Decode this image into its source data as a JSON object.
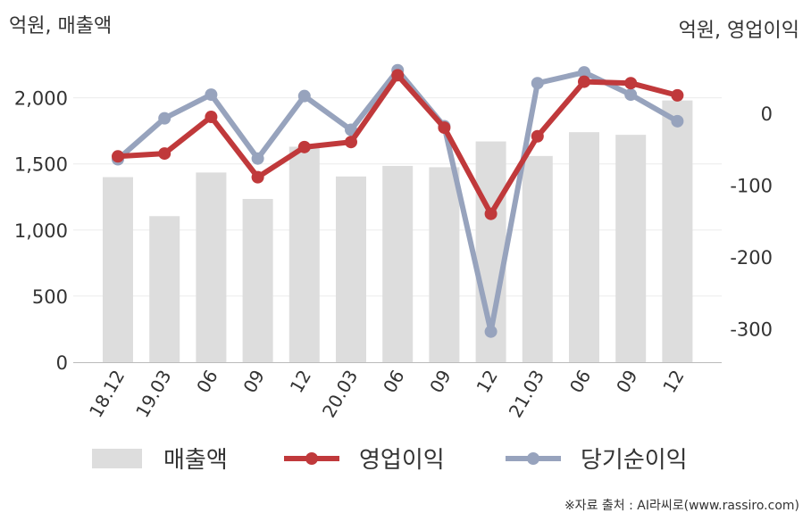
{
  "chart_data": {
    "type": "bar",
    "left_unit": "억원, 매출액",
    "right_unit": "억원, 영업이익",
    "categories": [
      "18.12",
      "19.03",
      "06",
      "09",
      "12",
      "20.03",
      "06",
      "09",
      "12",
      "21.03",
      "06",
      "09",
      "12"
    ],
    "y_left": {
      "min": 0,
      "max": 2200,
      "ticks": [
        "0",
        "500",
        "1,000",
        "1,500",
        "2,000"
      ],
      "tick_values": [
        0,
        500,
        1000,
        1500,
        2000
      ]
    },
    "y_right": {
      "min": -350,
      "max": 75,
      "ticks": [
        "0",
        "-100",
        "-200",
        "-300"
      ],
      "tick_values": [
        0,
        -100,
        -200,
        -300
      ]
    },
    "series": [
      {
        "name": "매출액",
        "axis": "left",
        "kind": "bar",
        "color": "#dddddd",
        "values": [
          1400,
          1105,
          1435,
          1235,
          1630,
          1405,
          1485,
          1475,
          1670,
          1560,
          1740,
          1720,
          1980
        ]
      },
      {
        "name": "영업이익",
        "axis": "right",
        "kind": "line",
        "color": "#c0393b",
        "values": [
          -60,
          -56,
          -5,
          -89,
          -47,
          -40,
          53,
          -20,
          -140,
          -32,
          44,
          42,
          25
        ]
      },
      {
        "name": "당기순이익",
        "axis": "right",
        "kind": "line",
        "color": "#97a3bd",
        "values": [
          -64,
          -7,
          26,
          -63,
          24,
          -23,
          60,
          -18,
          -304,
          42,
          57,
          26,
          -11
        ]
      }
    ],
    "grid": true,
    "legend_position": "bottom"
  },
  "source_text": "※자료 출처 : AI라씨로(www.rassiro.com)"
}
